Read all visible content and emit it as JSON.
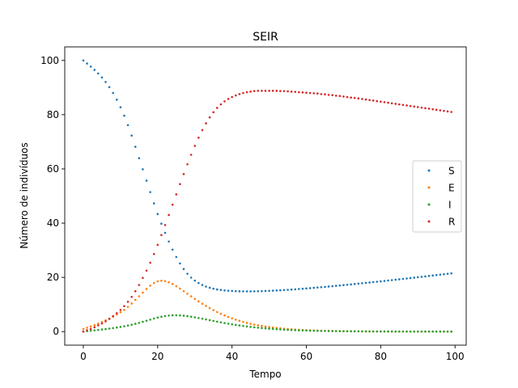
{
  "chart_data": {
    "type": "scatter",
    "title": "SEIR",
    "xlabel": "Tempo",
    "ylabel": "Número de indivíduos",
    "xlim": [
      -5,
      103
    ],
    "ylim": [
      -5,
      105
    ],
    "xticks": [
      0,
      20,
      40,
      60,
      80,
      100
    ],
    "yticks": [
      0,
      20,
      40,
      60,
      80,
      100
    ],
    "grid": false,
    "legend_position": "center-right",
    "x": [
      0,
      1,
      2,
      3,
      4,
      5,
      6,
      7,
      8,
      9,
      10,
      11,
      12,
      13,
      14,
      15,
      16,
      17,
      18,
      19,
      20,
      21,
      22,
      23,
      24,
      25,
      26,
      27,
      28,
      29,
      30,
      31,
      32,
      33,
      34,
      35,
      36,
      37,
      38,
      39,
      40,
      41,
      42,
      43,
      44,
      45,
      46,
      47,
      48,
      49,
      50,
      51,
      52,
      53,
      54,
      55,
      56,
      57,
      58,
      59,
      60,
      61,
      62,
      63,
      64,
      65,
      66,
      67,
      68,
      69,
      70,
      71,
      72,
      73,
      74,
      75,
      76,
      77,
      78,
      79,
      80,
      81,
      82,
      83,
      84,
      85,
      86,
      87,
      88,
      89,
      90,
      91,
      92,
      93,
      94,
      95,
      96,
      97,
      98,
      99
    ],
    "series": [
      {
        "name": "S",
        "color": "#1f77b4",
        "values": [
          100.0,
          98.87,
          97.72,
          96.51,
          95.2,
          93.73,
          92.06,
          90.16,
          88.0,
          85.53,
          82.75,
          79.63,
          76.15,
          72.3,
          68.16,
          63.95,
          59.86,
          55.68,
          51.45,
          47.29,
          43.38,
          39.8,
          36.42,
          33.23,
          30.24,
          27.52,
          25.13,
          23.07,
          21.34,
          19.93,
          18.8,
          17.9,
          17.18,
          16.61,
          16.17,
          15.82,
          15.55,
          15.35,
          15.19,
          15.07,
          14.98,
          14.92,
          14.87,
          14.85,
          14.84,
          14.84,
          14.86,
          14.89,
          14.93,
          14.98,
          15.04,
          15.1,
          15.17,
          15.25,
          15.33,
          15.42,
          15.51,
          15.61,
          15.71,
          15.81,
          15.92,
          16.03,
          16.15,
          16.26,
          16.38,
          16.5,
          16.63,
          16.75,
          16.88,
          17.01,
          17.14,
          17.28,
          17.41,
          17.55,
          17.69,
          17.83,
          17.97,
          18.11,
          18.25,
          18.39,
          18.54,
          18.69,
          18.84,
          18.99,
          19.14,
          19.29,
          19.44,
          19.59,
          19.75,
          19.9,
          20.06,
          20.21,
          20.37,
          20.53,
          20.69,
          20.85,
          21.01,
          21.17,
          21.33,
          21.49
        ]
      },
      {
        "name": "E",
        "color": "#ff7f0e",
        "values": [
          1.0,
          1.45,
          1.91,
          2.41,
          2.95,
          3.52,
          4.14,
          4.8,
          5.52,
          6.3,
          7.13,
          8.02,
          9.08,
          10.36,
          11.71,
          13.03,
          14.39,
          15.73,
          16.93,
          17.9,
          18.54,
          18.76,
          18.62,
          18.19,
          17.55,
          16.76,
          15.87,
          14.93,
          13.97,
          13.01,
          12.07,
          11.15,
          10.27,
          9.44,
          8.66,
          7.92,
          7.22,
          6.57,
          5.97,
          5.41,
          4.9,
          4.42,
          3.99,
          3.59,
          3.23,
          2.9,
          2.6,
          2.33,
          2.09,
          1.87,
          1.67,
          1.49,
          1.33,
          1.19,
          1.06,
          0.94,
          0.84,
          0.75,
          0.67,
          0.59,
          0.53,
          0.47,
          0.42,
          0.37,
          0.33,
          0.29,
          0.26,
          0.23,
          0.21,
          0.18,
          0.16,
          0.15,
          0.13,
          0.12,
          0.1,
          0.09,
          0.08,
          0.07,
          0.07,
          0.06,
          0.05,
          0.05,
          0.04,
          0.04,
          0.03,
          0.03,
          0.03,
          0.02,
          0.02,
          0.02,
          0.02,
          0.02,
          0.01,
          0.01,
          0.01,
          0.01,
          0.01,
          0.01,
          0.01,
          0.01
        ]
      },
      {
        "name": "I",
        "color": "#2ca02c",
        "values": [
          0.0,
          0.17,
          0.32,
          0.47,
          0.62,
          0.78,
          0.94,
          1.11,
          1.3,
          1.5,
          1.72,
          1.97,
          2.24,
          2.54,
          2.87,
          3.22,
          3.6,
          4.01,
          4.42,
          4.82,
          5.19,
          5.5,
          5.75,
          5.92,
          6.01,
          6.02,
          5.97,
          5.86,
          5.7,
          5.5,
          5.27,
          5.02,
          4.76,
          4.49,
          4.21,
          3.94,
          3.67,
          3.41,
          3.16,
          2.92,
          2.69,
          2.47,
          2.27,
          2.08,
          1.9,
          1.73,
          1.58,
          1.44,
          1.31,
          1.19,
          1.08,
          0.98,
          0.89,
          0.81,
          0.73,
          0.66,
          0.6,
          0.54,
          0.49,
          0.44,
          0.4,
          0.36,
          0.33,
          0.3,
          0.27,
          0.24,
          0.22,
          0.2,
          0.18,
          0.16,
          0.14,
          0.13,
          0.12,
          0.11,
          0.1,
          0.09,
          0.08,
          0.07,
          0.06,
          0.06,
          0.05,
          0.05,
          0.04,
          0.04,
          0.03,
          0.03,
          0.03,
          0.02,
          0.02,
          0.02,
          0.02,
          0.02,
          0.01,
          0.01,
          0.01,
          0.01,
          0.01,
          0.01,
          0.01,
          0.01
        ]
      },
      {
        "name": "R",
        "color": "#d62728",
        "values": [
          0.0,
          0.5,
          1.0,
          1.6,
          2.3,
          3.0,
          3.8,
          4.7,
          5.7,
          6.8,
          8.0,
          9.4,
          11.0,
          12.8,
          14.9,
          17.2,
          19.8,
          22.5,
          25.4,
          28.6,
          32.0,
          35.6,
          39.3,
          43.0,
          46.8,
          50.6,
          54.4,
          58.1,
          61.7,
          65.2,
          68.5,
          71.5,
          74.3,
          76.8,
          79.0,
          80.9,
          82.5,
          83.8,
          84.9,
          85.8,
          86.5,
          87.1,
          87.6,
          88.0,
          88.3,
          88.5,
          88.7,
          88.8,
          88.8,
          88.8,
          88.8,
          88.8,
          88.8,
          88.7,
          88.7,
          88.6,
          88.5,
          88.4,
          88.3,
          88.2,
          88.1,
          88.0,
          87.9,
          87.8,
          87.6,
          87.5,
          87.3,
          87.2,
          87.0,
          86.9,
          86.7,
          86.5,
          86.3,
          86.2,
          86.0,
          85.8,
          85.6,
          85.4,
          85.2,
          85.0,
          84.8,
          84.6,
          84.4,
          84.2,
          84.0,
          83.8,
          83.6,
          83.4,
          83.2,
          83.0,
          82.8,
          82.6,
          82.4,
          82.2,
          82.0,
          81.8,
          81.6,
          81.4,
          81.2,
          81.0
        ]
      }
    ]
  }
}
